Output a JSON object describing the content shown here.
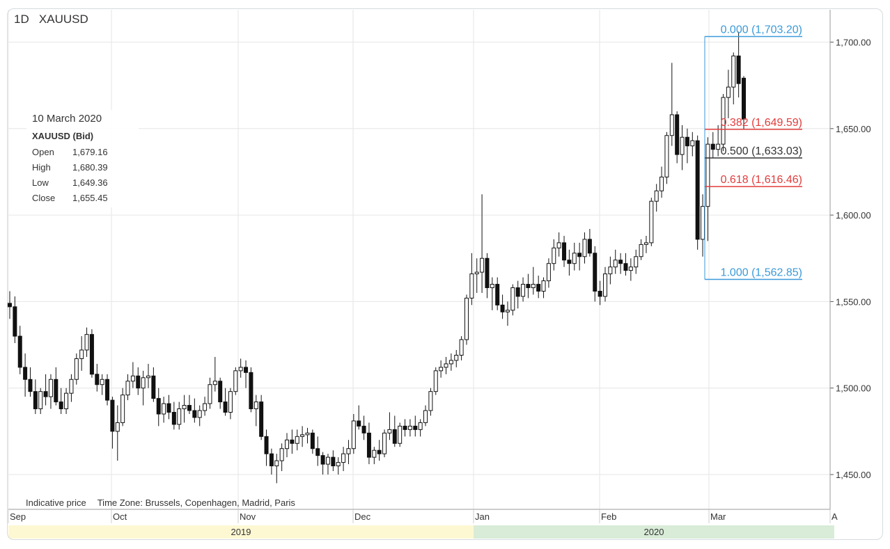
{
  "header": {
    "interval": "1D",
    "symbol": "XAUUSD"
  },
  "info_box": {
    "date": "10 March 2020",
    "title": "XAUUSD (Bid)",
    "rows": [
      {
        "label": "Open",
        "value": "1,679.16"
      },
      {
        "label": "High",
        "value": "1,680.39"
      },
      {
        "label": "Low",
        "value": "1,649.36"
      },
      {
        "label": "Close",
        "value": "1,655.45"
      }
    ]
  },
  "footer": {
    "indicative": "Indicative price",
    "timezone": "Time Zone: Brussels, Copenhagen, Madrid, Paris"
  },
  "chart_data": {
    "type": "candlestick",
    "ylim": [
      1430,
      1720
    ],
    "y_ticks": [
      {
        "value": 1450,
        "label": "1,450.00"
      },
      {
        "value": 1500,
        "label": "1,500.00"
      },
      {
        "value": 1550,
        "label": "1,550.00"
      },
      {
        "value": 1600,
        "label": "1,600.00"
      },
      {
        "value": 1650,
        "label": "1,650.00"
      },
      {
        "value": 1700,
        "label": "1,700.00"
      }
    ],
    "x_ticks": [
      "Sep",
      "Oct",
      "Nov",
      "Dec",
      "Jan",
      "Feb",
      "Mar",
      "A"
    ],
    "years": [
      {
        "label": "2019",
        "color": "#fdf8d2"
      },
      {
        "label": "2020",
        "color": "#d8ecd8"
      }
    ],
    "grid": true,
    "colors": {
      "candle": "#111111",
      "fib_blue": "#3a9ad9",
      "fib_red": "#e23c3c",
      "fib_gray": "#333333",
      "grid": "#e6e6e6"
    },
    "fibonacci": [
      {
        "level": "0.000",
        "price": 1703.2,
        "label": "0.000 (1,703.20)",
        "color": "blue"
      },
      {
        "level": "0.382",
        "price": 1649.59,
        "label": "0.382 (1,649.59)",
        "color": "red"
      },
      {
        "level": "0.500",
        "price": 1633.03,
        "label": "0.500 (1,633.03)",
        "color": "gray"
      },
      {
        "level": "0.618",
        "price": 1616.46,
        "label": "0.618 (1,616.46)",
        "color": "red"
      },
      {
        "level": "1.000",
        "price": 1562.85,
        "label": "1.000 (1,562.85)",
        "color": "blue"
      }
    ],
    "candles": [
      [
        1549,
        1556,
        1540,
        1547
      ],
      [
        1547,
        1553,
        1526,
        1530
      ],
      [
        1530,
        1536,
        1508,
        1512
      ],
      [
        1512,
        1520,
        1495,
        1505
      ],
      [
        1505,
        1512,
        1495,
        1498
      ],
      [
        1498,
        1505,
        1485,
        1488
      ],
      [
        1488,
        1500,
        1485,
        1498
      ],
      [
        1498,
        1508,
        1490,
        1495
      ],
      [
        1495,
        1508,
        1488,
        1505
      ],
      [
        1505,
        1512,
        1490,
        1492
      ],
      [
        1492,
        1500,
        1485,
        1488
      ],
      [
        1488,
        1500,
        1485,
        1497
      ],
      [
        1497,
        1508,
        1492,
        1505
      ],
      [
        1505,
        1520,
        1502,
        1517
      ],
      [
        1517,
        1530,
        1510,
        1522
      ],
      [
        1522,
        1535,
        1518,
        1531
      ],
      [
        1531,
        1534,
        1506,
        1508
      ],
      [
        1508,
        1514,
        1498,
        1502
      ],
      [
        1502,
        1508,
        1496,
        1505
      ],
      [
        1505,
        1508,
        1490,
        1493
      ],
      [
        1493,
        1495,
        1465,
        1475
      ],
      [
        1475,
        1490,
        1458,
        1480
      ],
      [
        1480,
        1500,
        1478,
        1496
      ],
      [
        1496,
        1508,
        1493,
        1504
      ],
      [
        1504,
        1515,
        1500,
        1507
      ],
      [
        1507,
        1512,
        1496,
        1500
      ],
      [
        1500,
        1510,
        1490,
        1506
      ],
      [
        1506,
        1514,
        1500,
        1507
      ],
      [
        1507,
        1512,
        1492,
        1494
      ],
      [
        1494,
        1500,
        1478,
        1485
      ],
      [
        1485,
        1495,
        1480,
        1491
      ],
      [
        1491,
        1496,
        1482,
        1486
      ],
      [
        1486,
        1492,
        1476,
        1479
      ],
      [
        1479,
        1492,
        1476,
        1488
      ],
      [
        1488,
        1496,
        1480,
        1490
      ],
      [
        1490,
        1496,
        1485,
        1487
      ],
      [
        1487,
        1494,
        1480,
        1483
      ],
      [
        1483,
        1490,
        1478,
        1487
      ],
      [
        1487,
        1495,
        1484,
        1491
      ],
      [
        1491,
        1506,
        1488,
        1502
      ],
      [
        1502,
        1518,
        1498,
        1504
      ],
      [
        1504,
        1506,
        1488,
        1492
      ],
      [
        1492,
        1500,
        1484,
        1486
      ],
      [
        1486,
        1500,
        1482,
        1498
      ],
      [
        1498,
        1512,
        1496,
        1510
      ],
      [
        1510,
        1517,
        1506,
        1512
      ],
      [
        1512,
        1516,
        1500,
        1509
      ],
      [
        1509,
        1512,
        1486,
        1488
      ],
      [
        1488,
        1496,
        1478,
        1492
      ],
      [
        1492,
        1496,
        1470,
        1472
      ],
      [
        1472,
        1476,
        1455,
        1462
      ],
      [
        1462,
        1465,
        1450,
        1455
      ],
      [
        1455,
        1462,
        1445,
        1458
      ],
      [
        1458,
        1468,
        1452,
        1465
      ],
      [
        1465,
        1474,
        1460,
        1470
      ],
      [
        1470,
        1476,
        1462,
        1468
      ],
      [
        1468,
        1476,
        1464,
        1472
      ],
      [
        1472,
        1478,
        1466,
        1473
      ],
      [
        1473,
        1477,
        1468,
        1474
      ],
      [
        1474,
        1476,
        1462,
        1465
      ],
      [
        1465,
        1472,
        1455,
        1461
      ],
      [
        1461,
        1463,
        1450,
        1456
      ],
      [
        1456,
        1462,
        1450,
        1460
      ],
      [
        1460,
        1464,
        1452,
        1455
      ],
      [
        1455,
        1460,
        1450,
        1457
      ],
      [
        1457,
        1466,
        1452,
        1462
      ],
      [
        1462,
        1470,
        1456,
        1465
      ],
      [
        1465,
        1485,
        1462,
        1481
      ],
      [
        1481,
        1490,
        1476,
        1478
      ],
      [
        1478,
        1484,
        1470,
        1474
      ],
      [
        1474,
        1480,
        1456,
        1460
      ],
      [
        1460,
        1466,
        1456,
        1464
      ],
      [
        1464,
        1470,
        1458,
        1462
      ],
      [
        1462,
        1476,
        1460,
        1474
      ],
      [
        1474,
        1486,
        1470,
        1476
      ],
      [
        1476,
        1484,
        1466,
        1468
      ],
      [
        1468,
        1480,
        1466,
        1478
      ],
      [
        1478,
        1482,
        1472,
        1476
      ],
      [
        1476,
        1482,
        1472,
        1478
      ],
      [
        1478,
        1484,
        1472,
        1476
      ],
      [
        1476,
        1482,
        1472,
        1480
      ],
      [
        1480,
        1490,
        1478,
        1487
      ],
      [
        1487,
        1500,
        1484,
        1498
      ],
      [
        1498,
        1512,
        1496,
        1510
      ],
      [
        1510,
        1516,
        1506,
        1512
      ],
      [
        1512,
        1518,
        1508,
        1514
      ],
      [
        1514,
        1520,
        1510,
        1516
      ],
      [
        1516,
        1522,
        1512,
        1519
      ],
      [
        1519,
        1530,
        1516,
        1528
      ],
      [
        1528,
        1554,
        1525,
        1552
      ],
      [
        1552,
        1578,
        1548,
        1566
      ],
      [
        1566,
        1575,
        1555,
        1567
      ],
      [
        1567,
        1612,
        1555,
        1575
      ],
      [
        1575,
        1578,
        1552,
        1558
      ],
      [
        1558,
        1564,
        1545,
        1560
      ],
      [
        1560,
        1564,
        1545,
        1548
      ],
      [
        1548,
        1554,
        1540,
        1544
      ],
      [
        1544,
        1550,
        1536,
        1545
      ],
      [
        1545,
        1560,
        1542,
        1558
      ],
      [
        1558,
        1562,
        1546,
        1553
      ],
      [
        1553,
        1564,
        1550,
        1560
      ],
      [
        1560,
        1566,
        1552,
        1558
      ],
      [
        1558,
        1570,
        1554,
        1560
      ],
      [
        1560,
        1565,
        1552,
        1556
      ],
      [
        1556,
        1564,
        1552,
        1562
      ],
      [
        1562,
        1575,
        1558,
        1572
      ],
      [
        1572,
        1586,
        1568,
        1581
      ],
      [
        1581,
        1590,
        1576,
        1584
      ],
      [
        1584,
        1588,
        1570,
        1574
      ],
      [
        1574,
        1580,
        1565,
        1572
      ],
      [
        1572,
        1584,
        1568,
        1578
      ],
      [
        1578,
        1584,
        1568,
        1576
      ],
      [
        1576,
        1590,
        1572,
        1586
      ],
      [
        1586,
        1592,
        1576,
        1578
      ],
      [
        1578,
        1582,
        1550,
        1556
      ],
      [
        1556,
        1562,
        1548,
        1553
      ],
      [
        1553,
        1570,
        1550,
        1566
      ],
      [
        1566,
        1576,
        1560,
        1570
      ],
      [
        1570,
        1580,
        1566,
        1574
      ],
      [
        1574,
        1578,
        1566,
        1572
      ],
      [
        1572,
        1578,
        1565,
        1568
      ],
      [
        1568,
        1575,
        1562,
        1570
      ],
      [
        1570,
        1580,
        1566,
        1576
      ],
      [
        1576,
        1586,
        1574,
        1583
      ],
      [
        1583,
        1588,
        1578,
        1584
      ],
      [
        1584,
        1610,
        1582,
        1608
      ],
      [
        1608,
        1618,
        1602,
        1614
      ],
      [
        1614,
        1628,
        1610,
        1622
      ],
      [
        1622,
        1648,
        1618,
        1646
      ],
      [
        1646,
        1688,
        1640,
        1658
      ],
      [
        1658,
        1660,
        1630,
        1635
      ],
      [
        1635,
        1652,
        1626,
        1645
      ],
      [
        1645,
        1650,
        1630,
        1640
      ],
      [
        1640,
        1648,
        1634,
        1643
      ],
      [
        1643,
        1646,
        1580,
        1586
      ],
      [
        1586,
        1612,
        1576,
        1605
      ],
      [
        1605,
        1645,
        1585,
        1641
      ],
      [
        1641,
        1648,
        1633,
        1638
      ],
      [
        1638,
        1652,
        1634,
        1641
      ],
      [
        1641,
        1670,
        1637,
        1668
      ],
      [
        1668,
        1684,
        1656,
        1674
      ],
      [
        1674,
        1694,
        1664,
        1692
      ],
      [
        1692,
        1706,
        1668,
        1676
      ],
      [
        1679.16,
        1680.39,
        1649.36,
        1655.45
      ]
    ]
  }
}
